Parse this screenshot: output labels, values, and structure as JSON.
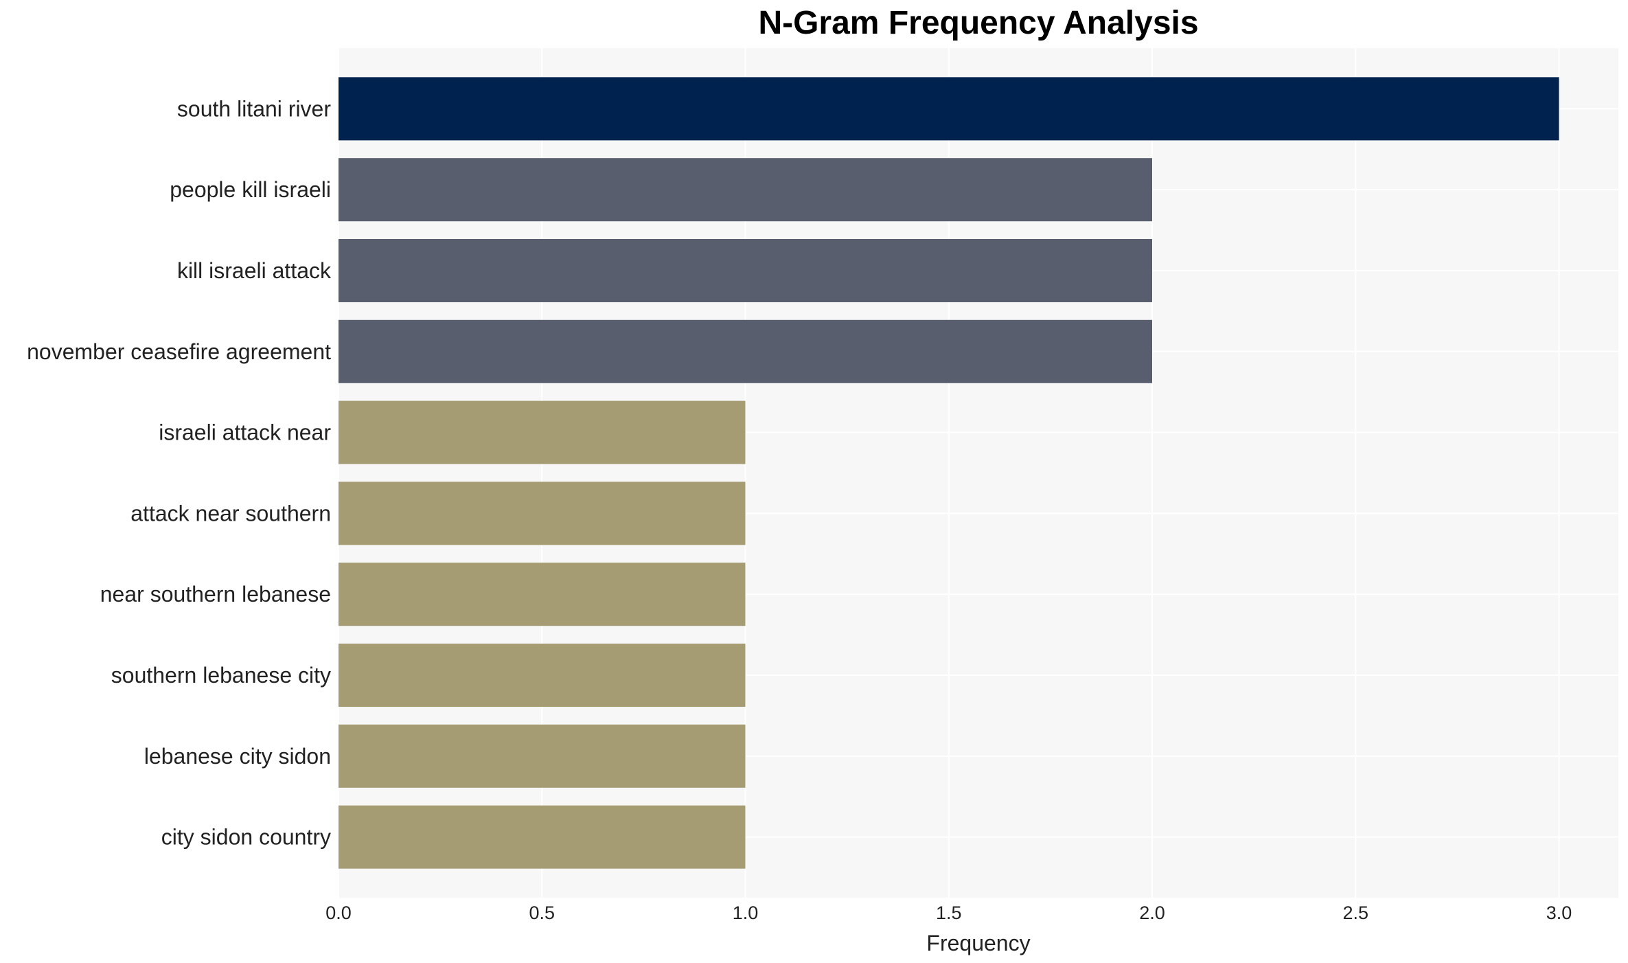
{
  "chart_data": {
    "type": "bar",
    "orientation": "horizontal",
    "title": "N-Gram Frequency Analysis",
    "xlabel": "Frequency",
    "ylabel": "",
    "xlim": [
      0,
      3.15
    ],
    "xticks": [
      "0.0",
      "0.5",
      "1.0",
      "1.5",
      "2.0",
      "2.5",
      "3.0"
    ],
    "grid": true,
    "categories": [
      "south litani river",
      "people kill israeli",
      "kill israeli attack",
      "november ceasefire agreement",
      "israeli attack near",
      "attack near southern",
      "near southern lebanese",
      "southern lebanese city",
      "lebanese city sidon",
      "city sidon country"
    ],
    "values": [
      3,
      2,
      2,
      2,
      1,
      1,
      1,
      1,
      1,
      1
    ],
    "colors": [
      "#00224e",
      "#585e6d",
      "#585e6d",
      "#585e6d",
      "#a59c74",
      "#a59c74",
      "#a59c74",
      "#a59c74",
      "#a59c74",
      "#a59c74"
    ],
    "plot_background": "#f7f7f7",
    "grid_color": "#ffffff"
  }
}
